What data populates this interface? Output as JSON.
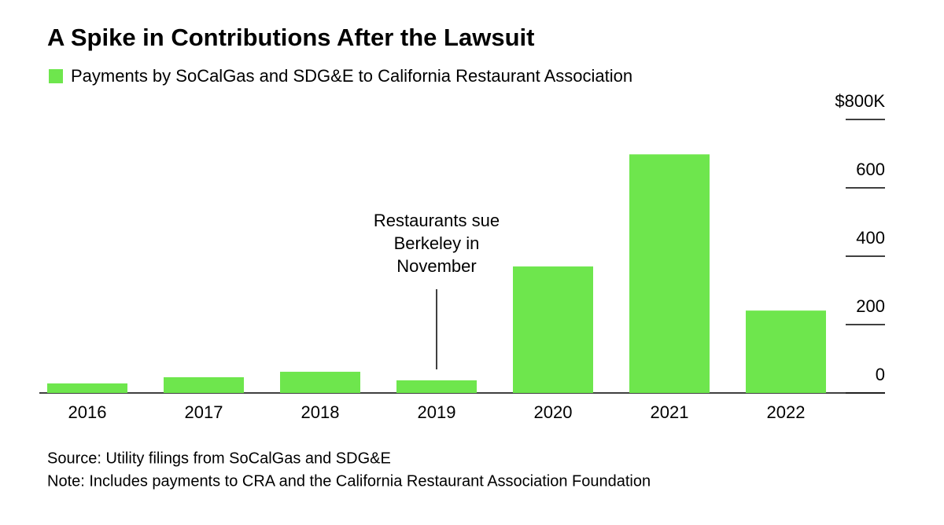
{
  "chart_data": {
    "type": "bar",
    "title": "A Spike in Contributions After the Lawsuit",
    "categories": [
      "2016",
      "2017",
      "2018",
      "2019",
      "2020",
      "2021",
      "2022"
    ],
    "series": [
      {
        "name": "Payments by SoCalGas and SDG&E to California Restaurant Association",
        "color": "#6ee64d",
        "values": [
          28,
          46,
          62,
          37,
          370,
          698,
          241
        ]
      }
    ],
    "ylim": [
      0,
      800
    ],
    "yticks": [
      0,
      200,
      400,
      600,
      {
        "value": 800,
        "label": "$800K"
      }
    ],
    "annotation": {
      "category": "2019",
      "lines": [
        "Restaurants sue",
        "Berkeley in",
        "November"
      ]
    },
    "source": "Source: Utility filings from SoCalGas and SDG&E",
    "note": "Note: Includes payments to CRA and the California Restaurant Association Foundation"
  }
}
